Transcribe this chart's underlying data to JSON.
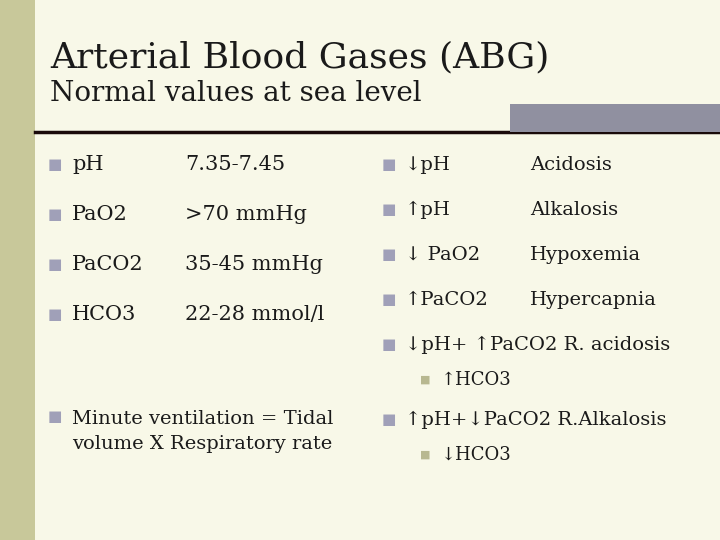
{
  "title_line1": "Arterial Blood Gases (ABG)",
  "title_line2": "Normal values at sea level",
  "bg_color": "#f8f8e8",
  "left_bar_color": "#c8c89a",
  "top_right_bar_color": "#9090a0",
  "separator_color": "#1a0a0a",
  "bullet_color": "#a0a0b8",
  "sub_bullet_color": "#b8b890",
  "title_color": "#1a1a1a",
  "text_color": "#1a1a1a",
  "left_items": [
    [
      "pH",
      "7.35-7.45"
    ],
    [
      "PaO2",
      ">70 mmHg"
    ],
    [
      "PaCO2",
      "35-45 mmHg"
    ],
    [
      "HCO3",
      "22-28 mmol/l"
    ]
  ],
  "right_items": [
    [
      "↓pH",
      "Acidosis"
    ],
    [
      "↑pH",
      "Alkalosis"
    ],
    [
      "↓ PaO2",
      "Hypoxemia"
    ],
    [
      "↑PaCO2",
      "Hypercapnia"
    ],
    [
      "↓pH+ ↑PaCO2 R. acidosis",
      ""
    ]
  ],
  "sub_item_right_1": "↑HCO3",
  "right_item_bottom": "↑pH+↓PaCO2 R.Alkalosis",
  "sub_item_right_2": "↓HCO3",
  "bottom_left": "Minute ventilation = Tidal\nvolume X Respiratory rate",
  "font_family": "DejaVu Serif"
}
